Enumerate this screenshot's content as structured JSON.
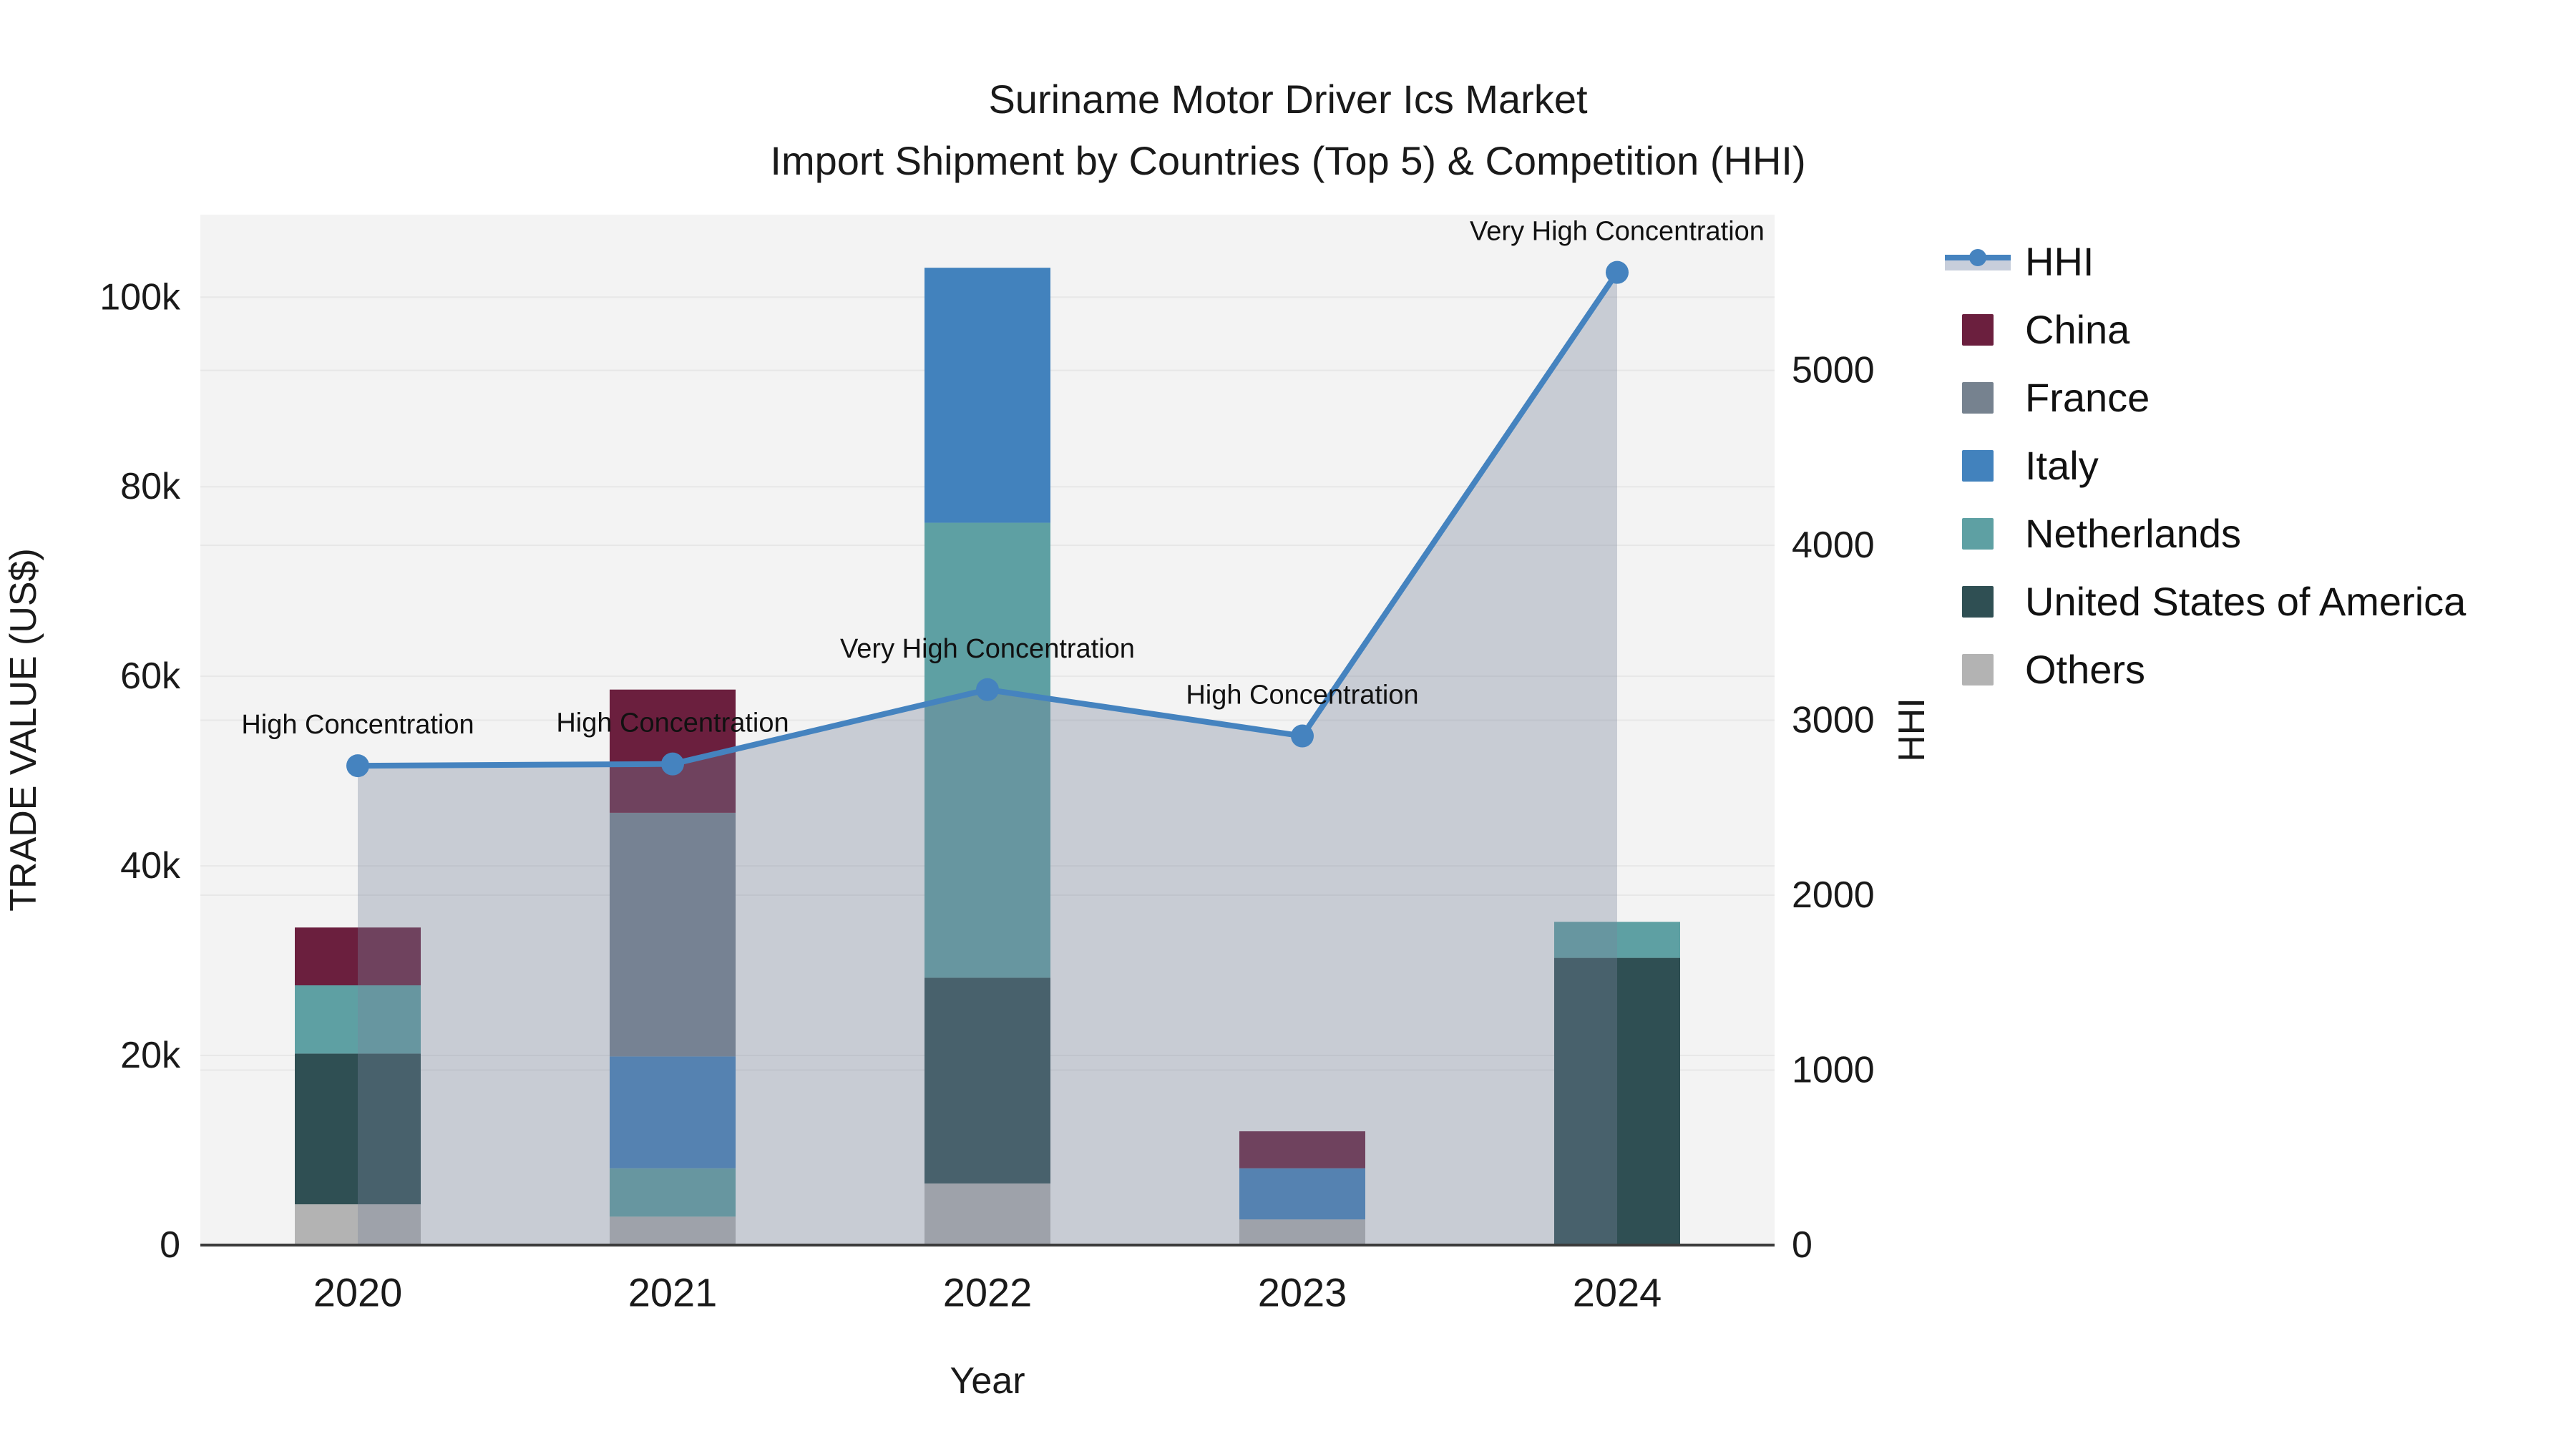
{
  "title": {
    "line1": "Suriname Motor Driver Ics Market",
    "line2": "Import Shipment by Countries (Top 5) & Competition (HHI)"
  },
  "chart_data": {
    "type": "bar",
    "subtype": "stacked-bars-with-line-dual-axis",
    "categories": [
      "2020",
      "2021",
      "2022",
      "2023",
      "2024"
    ],
    "bar_series": [
      {
        "name": "China",
        "color": "#6B1F3E",
        "values": [
          6100,
          13000,
          0,
          3900,
          0
        ]
      },
      {
        "name": "France",
        "color": "#76828F",
        "values": [
          0,
          25700,
          0,
          0,
          0
        ]
      },
      {
        "name": "Italy",
        "color": "#4282BD",
        "values": [
          0,
          11800,
          26900,
          5400,
          0
        ]
      },
      {
        "name": "Netherlands",
        "color": "#5EA0A3",
        "values": [
          7200,
          5100,
          48000,
          0,
          3800
        ]
      },
      {
        "name": "United States of America",
        "color": "#2F4F53",
        "values": [
          15900,
          0,
          21700,
          0,
          30300
        ]
      },
      {
        "name": "Others",
        "color": "#B3B3B3",
        "values": [
          4300,
          3000,
          6500,
          2700,
          0
        ]
      }
    ],
    "stack_order_bottom_to_top": [
      "Others",
      "United States of America",
      "Netherlands",
      "Italy",
      "France",
      "China"
    ],
    "line_series": {
      "name": "HHI",
      "color": "#4583BF",
      "marker_color": "#4583BF",
      "area_fill": "rgba(120,132,155,0.35)",
      "values": [
        2740,
        2750,
        3175,
        2910,
        5560
      ]
    },
    "annotations": [
      {
        "year": "2020",
        "text": "High Concentration"
      },
      {
        "year": "2021",
        "text": "High Concentration"
      },
      {
        "year": "2022",
        "text": "Very High Concentration"
      },
      {
        "year": "2023",
        "text": "High Concentration"
      },
      {
        "year": "2024",
        "text": "Very High Concentration"
      }
    ],
    "y_left": {
      "title": "TRADE VALUE (US$)",
      "range": [
        0,
        108700
      ],
      "ticks": [
        {
          "label": "0",
          "value": 0
        },
        {
          "label": "20k",
          "value": 20000
        },
        {
          "label": "40k",
          "value": 40000
        },
        {
          "label": "60k",
          "value": 60000
        },
        {
          "label": "80k",
          "value": 80000
        },
        {
          "label": "100k",
          "value": 100000
        }
      ]
    },
    "y_right": {
      "title": "HHI",
      "range": [
        0,
        5890
      ],
      "ticks": [
        {
          "label": "0",
          "value": 0
        },
        {
          "label": "1000",
          "value": 1000
        },
        {
          "label": "2000",
          "value": 2000
        },
        {
          "label": "3000",
          "value": 3000
        },
        {
          "label": "4000",
          "value": 4000
        },
        {
          "label": "5000",
          "value": 5000
        }
      ]
    },
    "x_axis": {
      "title": "Year"
    },
    "legend": {
      "items": [
        {
          "label": "HHI",
          "type": "line",
          "color": "#4583BF",
          "fill": "#C7CEDB"
        },
        {
          "label": "China",
          "type": "swatch",
          "color": "#6B1F3E"
        },
        {
          "label": "France",
          "type": "swatch",
          "color": "#76828F"
        },
        {
          "label": "Italy",
          "type": "swatch",
          "color": "#4282BD"
        },
        {
          "label": "Netherlands",
          "type": "swatch",
          "color": "#5EA0A3"
        },
        {
          "label": "United States of America",
          "type": "swatch",
          "color": "#2F4F53"
        },
        {
          "label": "Others",
          "type": "swatch",
          "color": "#B3B3B3"
        }
      ]
    },
    "style": {
      "plot_background": "#F3F3F3",
      "gridline_color": "#E7E7E7",
      "axis_line_color": "#3B3B3B",
      "tick_text_color": "#1A1A1A",
      "annotation_text_color": "#111111"
    }
  }
}
